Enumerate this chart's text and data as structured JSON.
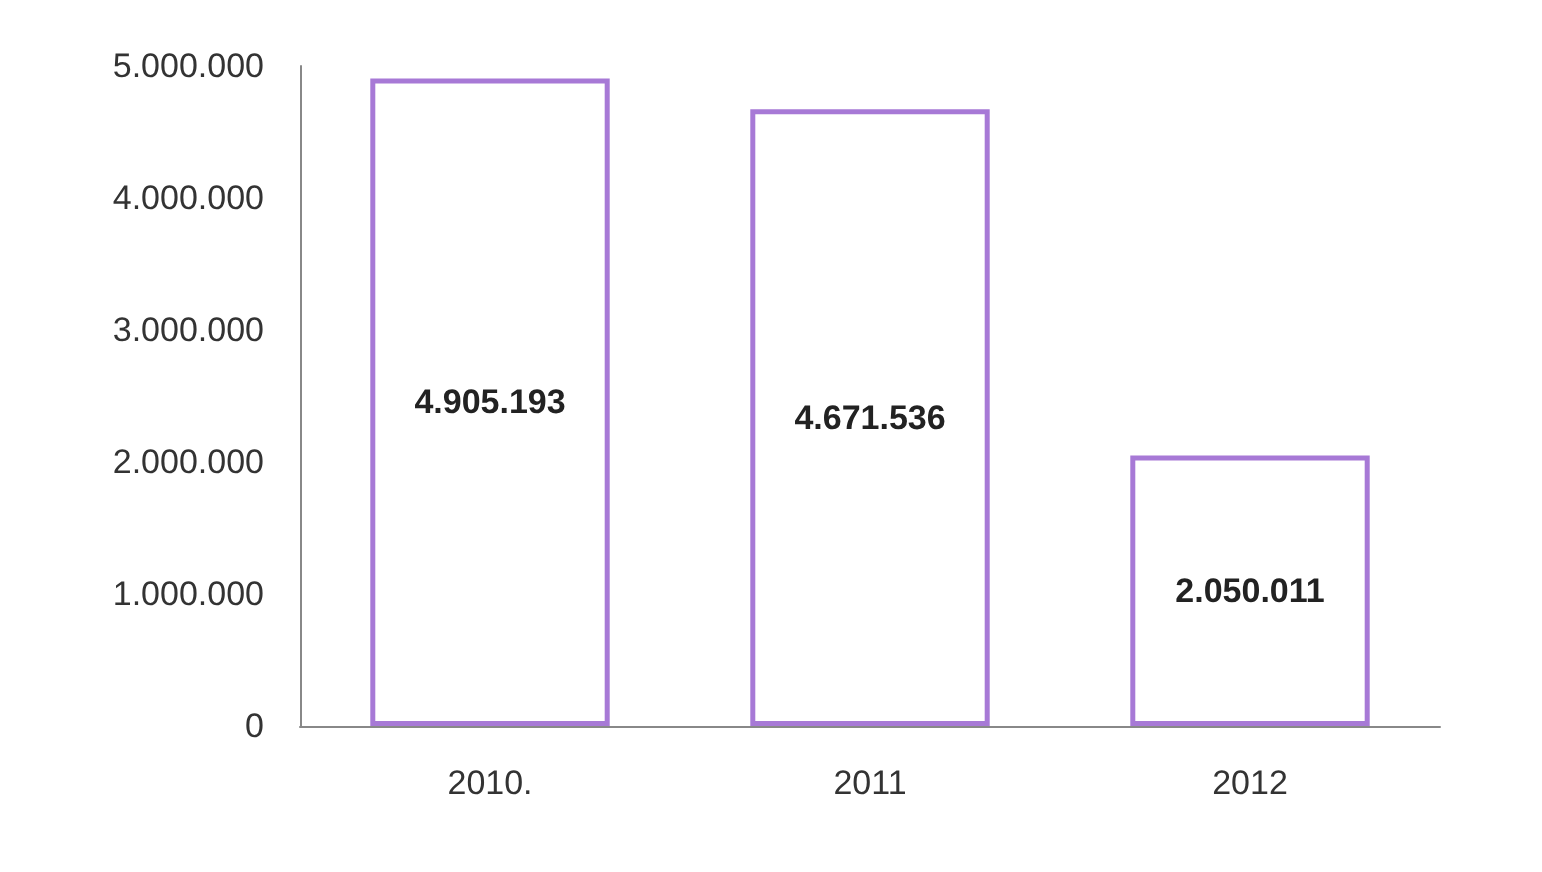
{
  "chart_data": {
    "type": "bar",
    "categories": [
      "2010.",
      "2011",
      "2012"
    ],
    "values": [
      4905193,
      4671536,
      2050011
    ],
    "color": "#ffffff",
    "value_labels": [
      "4.905.193",
      "4.671.536",
      "2.050.011"
    ],
    "ylim": [
      0,
      5000000
    ],
    "yticks": [
      {
        "value": 0,
        "label": "0"
      },
      {
        "value": 1000000,
        "label": "1.000.000"
      },
      {
        "value": 2000000,
        "label": "2.000.000"
      },
      {
        "value": 3000000,
        "label": "3.000.000"
      },
      {
        "value": 4000000,
        "label": "4.000.000"
      },
      {
        "value": 5000000,
        "label": "5.000.000"
      }
    ]
  }
}
